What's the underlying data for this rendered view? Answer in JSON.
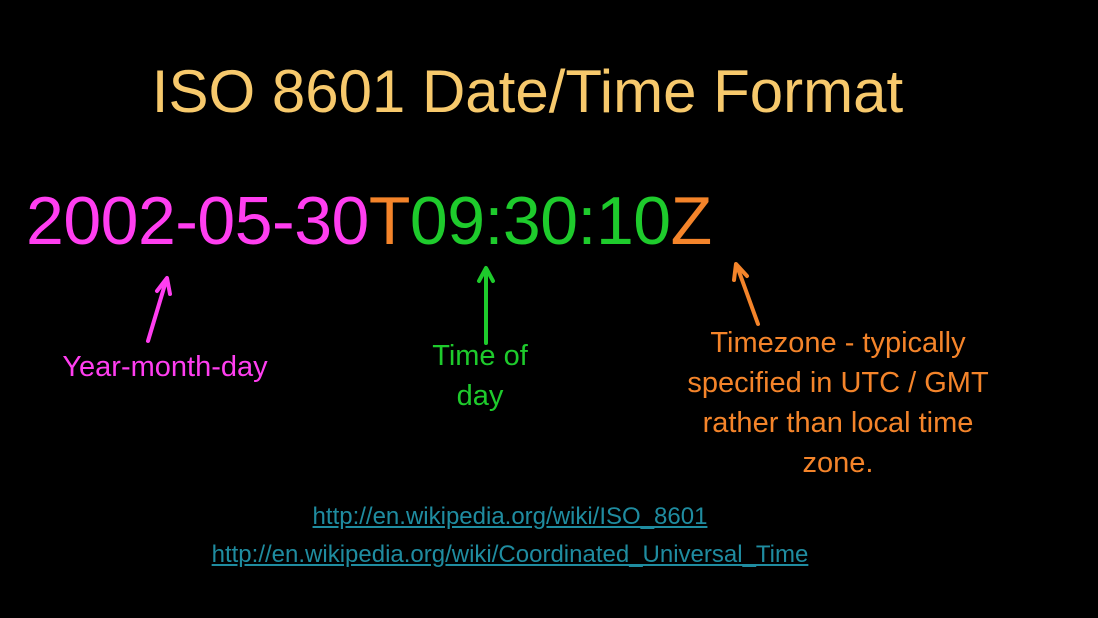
{
  "colors": {
    "background": "#000000",
    "title": "#f7c96c",
    "date": "#ff3ef0",
    "time": "#1ecb2c",
    "zone": "#f4842a",
    "link": "#1f8ca0"
  },
  "title": "ISO 8601 Date/Time Format",
  "timestamp": {
    "date_part": "2002-05-30",
    "separator": "T",
    "time_part": "09:30:10",
    "zone_part": "Z"
  },
  "annotations": {
    "date_label": "Year-month-day",
    "time_label_lines": [
      "Time of",
      "day"
    ],
    "zone_label_lines": [
      "Timezone - typically",
      "specified in UTC / GMT",
      "rather than local time",
      "zone."
    ]
  },
  "links": [
    "http://en.wikipedia.org/wiki/ISO_8601",
    "http://en.wikipedia.org/wiki/Coordinated_Universal_Time"
  ]
}
